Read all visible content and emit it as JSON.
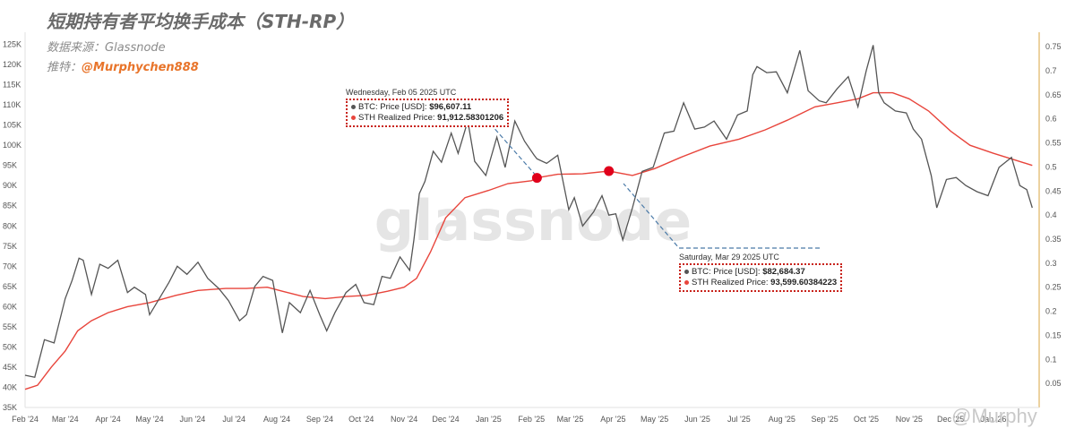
{
  "header": {
    "title": "短期持有者平均换手成本（STH-RP）",
    "source_prefix": "数据来源：",
    "source_name": "Glassnode",
    "twitter_prefix": "推特：",
    "twitter_handle": "@Murphychen888"
  },
  "watermark": {
    "center": "glassnode",
    "corner": "@Murphy"
  },
  "tooltips": [
    {
      "date": "Wednesday, Feb 05 2025 UTC",
      "btc_label": "BTC: Price [USD]:",
      "btc_value": "$96,607.11",
      "sth_label": "STH Realized Price:",
      "sth_value": "91,912.58301206"
    },
    {
      "date": "Saturday, Mar 29 2025 UTC",
      "btc_label": "BTC: Price [USD]:",
      "btc_value": "$82,684.37",
      "sth_label": "STH Realized Price:",
      "sth_value": "93,599.60384223"
    }
  ],
  "colors": {
    "price": "#555555",
    "sth": "#e8453c",
    "right_axis": "#d9a441",
    "marker": "#e0001b",
    "tooltip_border": "#c8221a"
  },
  "chart_data": {
    "type": "line",
    "title": "短期持有者平均换手成本（STH-RP）",
    "xlabel": "",
    "ylabel": "",
    "x_ticks": [
      "Feb '24",
      "Mar '24",
      "Apr '24",
      "May '24",
      "Jun '24",
      "Jul '24",
      "Aug '24",
      "Sep '24",
      "Oct '24",
      "Nov '24",
      "Dec '24",
      "Jan '25",
      "Feb '25",
      "Mar '25",
      "Apr '25",
      "May '25",
      "Jun '25",
      "Jul '25",
      "Aug '25",
      "Sep '25",
      "Oct '25",
      "Nov '25",
      "Dec '25",
      "Jan '26"
    ],
    "y_left_ticks": [
      "35K",
      "40K",
      "45K",
      "50K",
      "55K",
      "60K",
      "65K",
      "70K",
      "75K",
      "80K",
      "85K",
      "90K",
      "95K",
      "100K",
      "105K",
      "110K",
      "115K",
      "120K",
      "125K"
    ],
    "y_left_range": [
      35000,
      128000
    ],
    "y_right_ticks": [
      "0.05",
      "0.1",
      "0.15",
      "0.2",
      "0.25",
      "0.3",
      "0.35",
      "0.4",
      "0.45",
      "0.5",
      "0.55",
      "0.6",
      "0.65",
      "0.7",
      "0.75"
    ],
    "y_right_range": [
      0,
      0.78
    ],
    "grid": false,
    "series": [
      {
        "name": "BTC: Price [USD]",
        "x": [
          "2024-02-01",
          "2024-02-08",
          "2024-02-15",
          "2024-02-22",
          "2024-03-01",
          "2024-03-06",
          "2024-03-11",
          "2024-03-14",
          "2024-03-20",
          "2024-03-26",
          "2024-04-01",
          "2024-04-08",
          "2024-04-15",
          "2024-04-20",
          "2024-04-28",
          "2024-05-01",
          "2024-05-08",
          "2024-05-15",
          "2024-05-21",
          "2024-05-28",
          "2024-06-05",
          "2024-06-12",
          "2024-06-20",
          "2024-06-27",
          "2024-07-05",
          "2024-07-10",
          "2024-07-16",
          "2024-07-22",
          "2024-07-29",
          "2024-08-05",
          "2024-08-10",
          "2024-08-18",
          "2024-08-25",
          "2024-09-01",
          "2024-09-06",
          "2024-09-12",
          "2024-09-20",
          "2024-09-27",
          "2024-10-03",
          "2024-10-10",
          "2024-10-16",
          "2024-10-22",
          "2024-10-29",
          "2024-11-05",
          "2024-11-08",
          "2024-11-12",
          "2024-11-16",
          "2024-11-22",
          "2024-11-28",
          "2024-12-05",
          "2024-12-10",
          "2024-12-17",
          "2024-12-22",
          "2024-12-30",
          "2025-01-07",
          "2025-01-13",
          "2025-01-20",
          "2025-01-27",
          "2025-02-03",
          "2025-02-05",
          "2025-02-12",
          "2025-02-20",
          "2025-02-28",
          "2025-03-04",
          "2025-03-10",
          "2025-03-18",
          "2025-03-24",
          "2025-03-29",
          "2025-04-03",
          "2025-04-08",
          "2025-04-15",
          "2025-04-22",
          "2025-04-30",
          "2025-05-08",
          "2025-05-15",
          "2025-05-22",
          "2025-05-30",
          "2025-06-06",
          "2025-06-13",
          "2025-06-22",
          "2025-06-30",
          "2025-07-07",
          "2025-07-11",
          "2025-07-14",
          "2025-07-21",
          "2025-07-28",
          "2025-08-05",
          "2025-08-14",
          "2025-08-20",
          "2025-08-28",
          "2025-09-02",
          "2025-09-10",
          "2025-09-18",
          "2025-09-25",
          "2025-10-01",
          "2025-10-06",
          "2025-10-10",
          "2025-10-14",
          "2025-10-22",
          "2025-10-30",
          "2025-11-04",
          "2025-11-10",
          "2025-11-17",
          "2025-11-21",
          "2025-11-28",
          "2025-12-05",
          "2025-12-12",
          "2025-12-20",
          "2025-12-28",
          "2026-01-05",
          "2026-01-14",
          "2026-01-20",
          "2026-01-25",
          "2026-01-29"
        ],
        "values": [
          43000,
          42500,
          51800,
          51000,
          62000,
          66500,
          72000,
          71500,
          63000,
          70500,
          69500,
          71500,
          63500,
          64800,
          63000,
          58000,
          62000,
          66000,
          70000,
          68000,
          71000,
          67000,
          64500,
          61500,
          56500,
          58000,
          65000,
          67500,
          66500,
          53500,
          61000,
          58500,
          64000,
          58000,
          54000,
          58500,
          63500,
          65500,
          61000,
          60500,
          67500,
          67000,
          72300,
          69000,
          76500,
          88000,
          91000,
          98500,
          95800,
          103000,
          98000,
          106000,
          96000,
          92500,
          102000,
          94500,
          106000,
          101000,
          97500,
          96607,
          95500,
          97500,
          84000,
          87000,
          80000,
          83500,
          87500,
          82684,
          83000,
          76500,
          84500,
          93500,
          94500,
          103000,
          103500,
          110500,
          104000,
          104500,
          106000,
          101500,
          107500,
          108500,
          117500,
          119500,
          118000,
          118200,
          113000,
          123500,
          113500,
          111000,
          110500,
          114000,
          117000,
          109500,
          118500,
          124800,
          113000,
          110500,
          108500,
          108000,
          104000,
          101500,
          92500,
          84500,
          91500,
          92000,
          90000,
          88500,
          87500,
          94500,
          97000,
          90000,
          89000,
          84500
        ]
      },
      {
        "name": "STH Realized Price",
        "x": [
          "2024-02-01",
          "2024-02-10",
          "2024-02-20",
          "2024-03-01",
          "2024-03-10",
          "2024-03-20",
          "2024-04-01",
          "2024-04-15",
          "2024-05-01",
          "2024-05-20",
          "2024-06-05",
          "2024-06-25",
          "2024-07-10",
          "2024-07-25",
          "2024-08-05",
          "2024-08-20",
          "2024-09-05",
          "2024-09-20",
          "2024-10-05",
          "2024-10-20",
          "2024-11-01",
          "2024-11-10",
          "2024-11-20",
          "2024-12-01",
          "2024-12-15",
          "2025-01-01",
          "2025-01-15",
          "2025-02-01",
          "2025-02-05",
          "2025-02-20",
          "2025-03-10",
          "2025-03-29",
          "2025-04-15",
          "2025-05-01",
          "2025-05-20",
          "2025-06-10",
          "2025-07-01",
          "2025-07-20",
          "2025-08-05",
          "2025-08-25",
          "2025-09-10",
          "2025-09-25",
          "2025-10-06",
          "2025-10-20",
          "2025-11-01",
          "2025-11-15",
          "2025-12-01",
          "2025-12-15",
          "2026-01-01",
          "2026-01-15",
          "2026-01-29"
        ],
        "values": [
          39500,
          40500,
          45000,
          49000,
          54000,
          56500,
          58500,
          60000,
          61000,
          62800,
          64000,
          64500,
          64500,
          64800,
          63800,
          62500,
          62000,
          62500,
          62800,
          63800,
          64800,
          67000,
          73500,
          82000,
          87000,
          88800,
          90500,
          91200,
          91913,
          92800,
          92900,
          93600,
          92500,
          94200,
          97000,
          99800,
          101500,
          103800,
          106200,
          109500,
          110500,
          111500,
          113000,
          113000,
          111500,
          108500,
          103500,
          100000,
          98000,
          96500,
          95000
        ]
      }
    ],
    "annotations": [
      {
        "date": "2025-02-05",
        "value": 91912.58,
        "label": "Wednesday, Feb 05 2025 UTC"
      },
      {
        "date": "2025-03-29",
        "value": 93599.6,
        "label": "Saturday, Mar 29 2025 UTC"
      }
    ]
  }
}
